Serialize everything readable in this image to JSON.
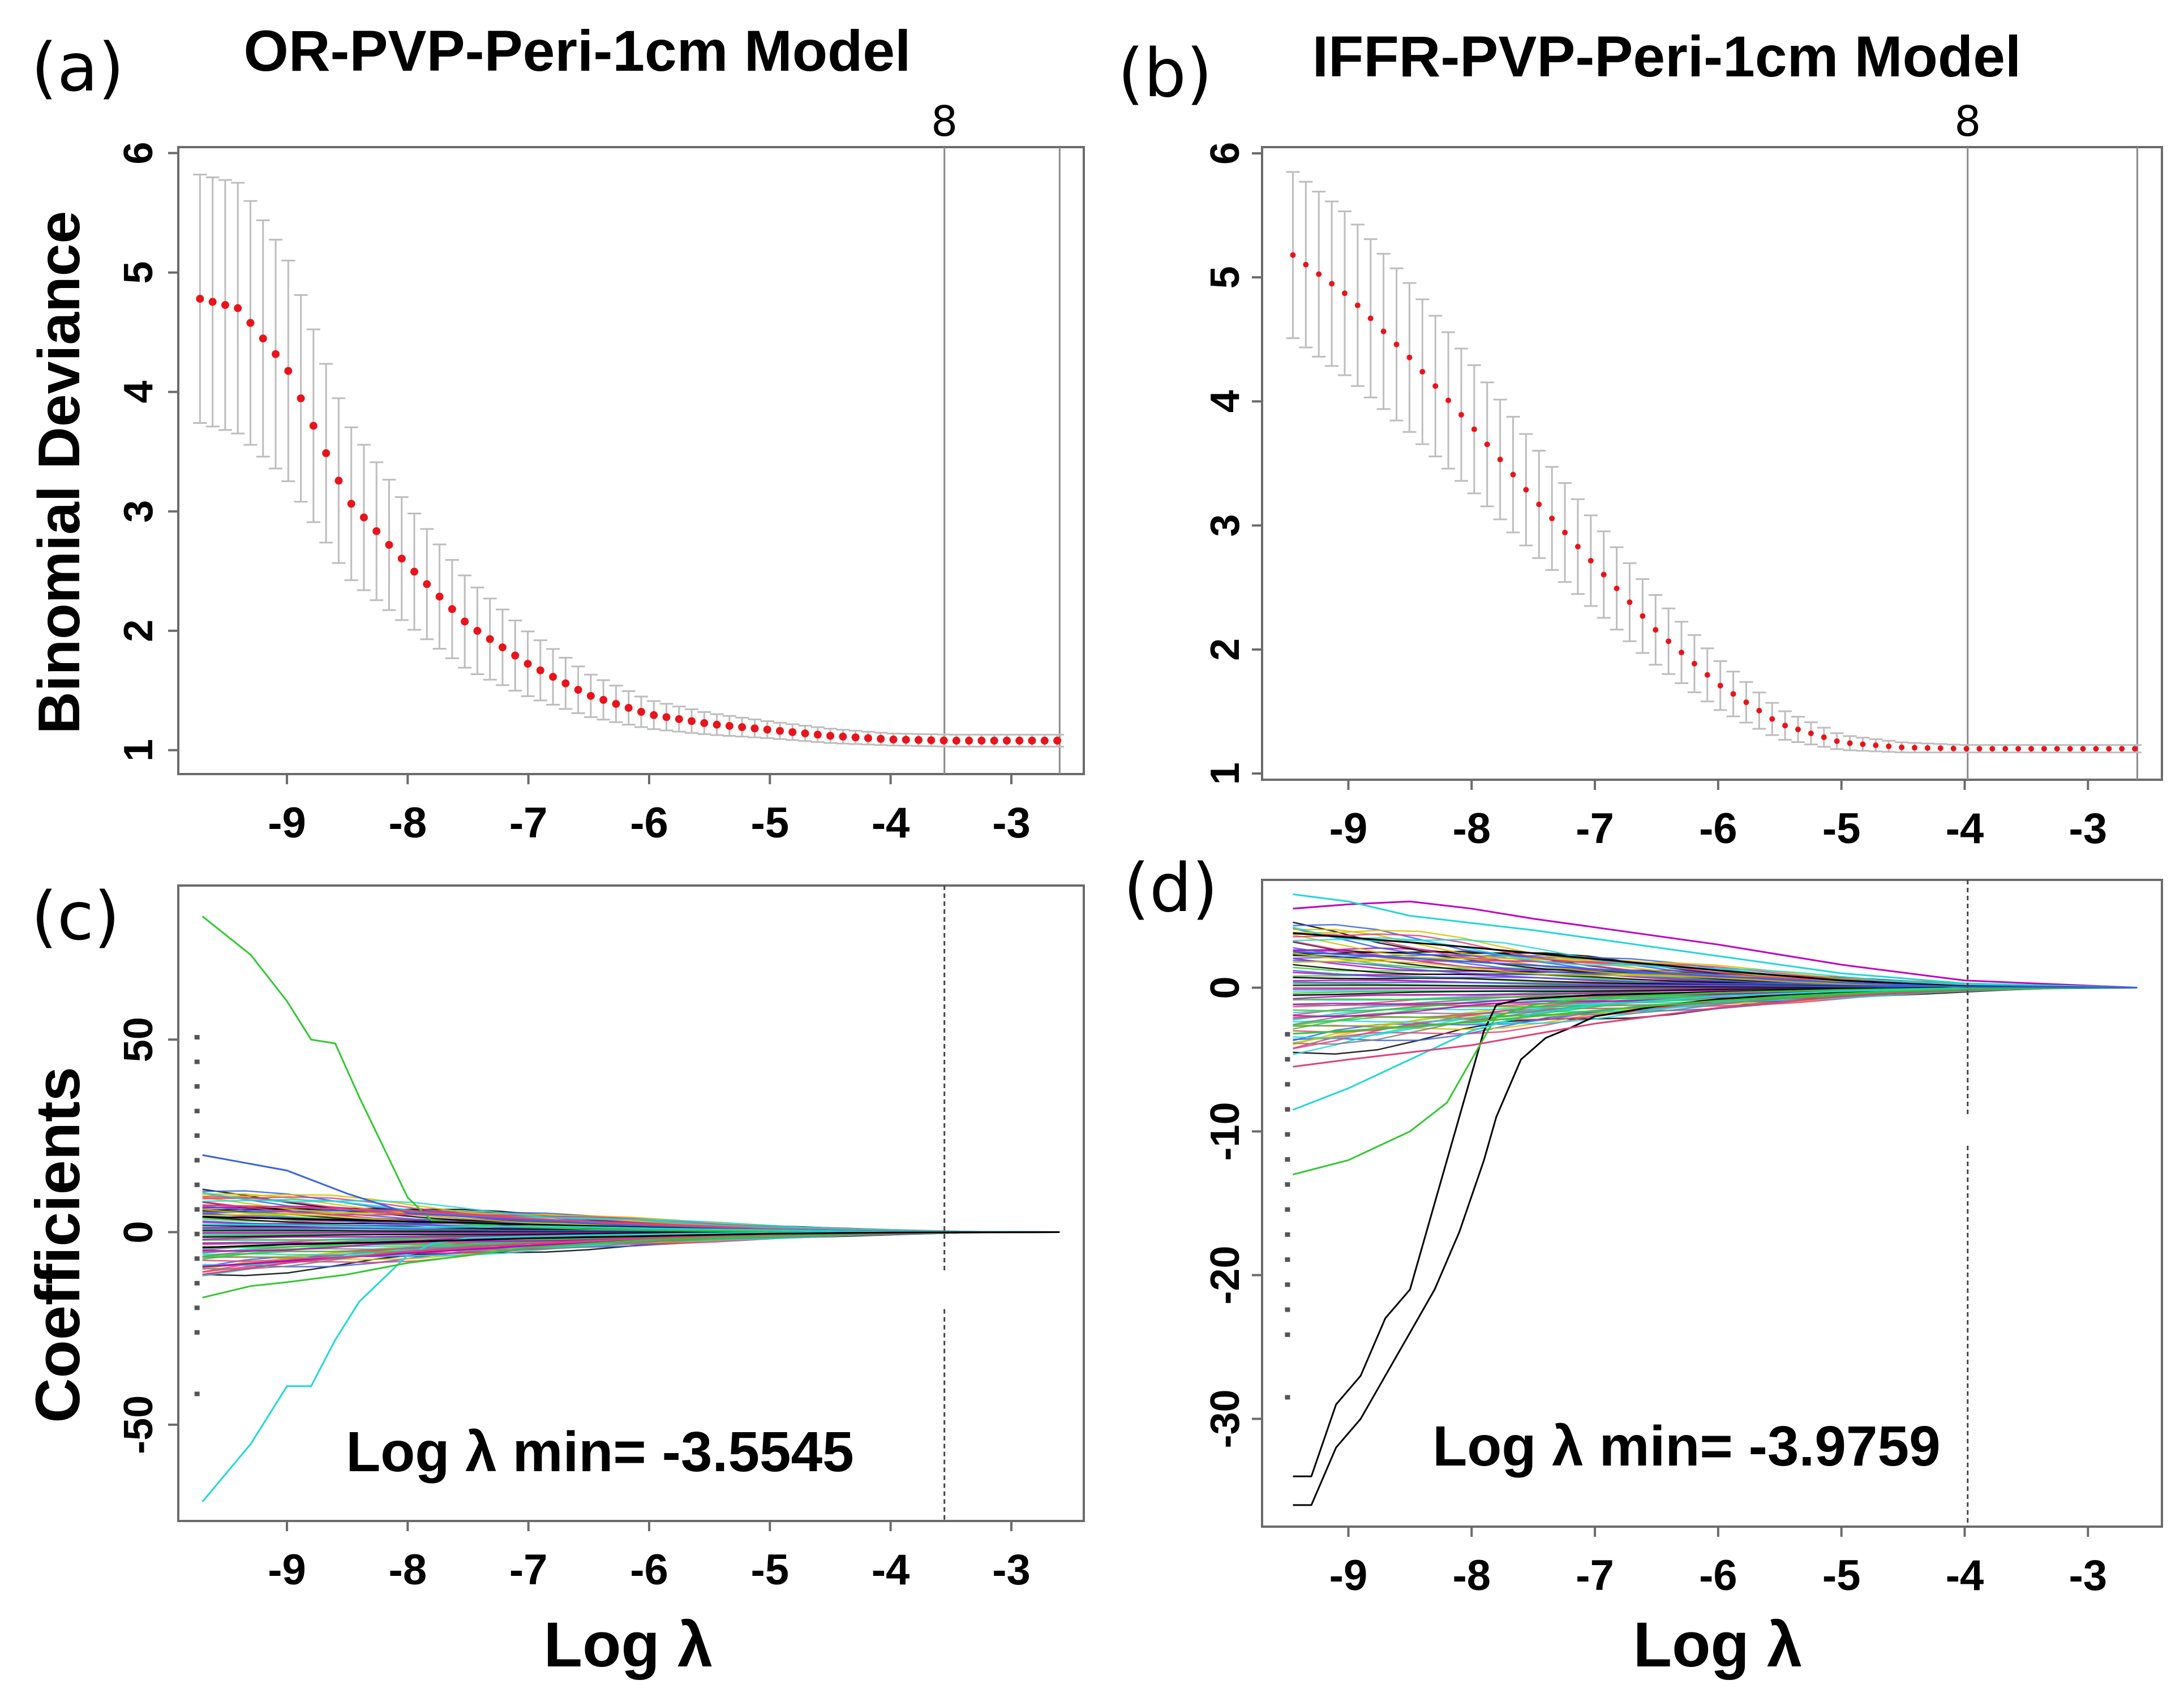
{
  "chart_data": [
    {
      "id": "a",
      "panel_label": "(a)",
      "title": "OR-PVP-Peri-1cm Model",
      "type": "line",
      "xlabel": "",
      "ylabel": "Binomial Deviance",
      "xlim": [
        -9.9,
        -2.4
      ],
      "ylim": [
        0.8,
        6.05
      ],
      "xticks": [
        -9,
        -8,
        -7,
        -6,
        -5,
        -4,
        -3
      ],
      "yticks": [
        1,
        2,
        3,
        4,
        5,
        6
      ],
      "top_labels": [
        {
          "x": -3.5545,
          "text": "8"
        }
      ],
      "vlines": [
        -3.5545,
        -2.6
      ],
      "series": [
        {
          "x_start": -9.72,
          "x_end": -2.62,
          "n": 69,
          "x_knots": [
            -9.72,
            -9.4,
            -9.0,
            -8.5,
            -8.0,
            -7.5,
            -7.0,
            -6.5,
            -6.0,
            -5.5,
            -5.0,
            -4.5,
            -4.0,
            -3.5,
            -2.62
          ],
          "y_knots": [
            4.78,
            4.7,
            4.2,
            3.1,
            2.55,
            2.05,
            1.72,
            1.46,
            1.3,
            1.22,
            1.17,
            1.12,
            1.09,
            1.08,
            1.08
          ],
          "se_knots": [
            1.04,
            1.05,
            0.93,
            0.65,
            0.5,
            0.38,
            0.27,
            0.18,
            0.12,
            0.09,
            0.07,
            0.06,
            0.05,
            0.05,
            0.05
          ]
        }
      ]
    },
    {
      "id": "b",
      "panel_label": "(b)",
      "title": "IFFR-PVP-Peri-1cm Model",
      "type": "line",
      "xlabel": "",
      "ylabel": "",
      "xlim": [
        -9.7,
        -2.4
      ],
      "ylim": [
        0.95,
        6.05
      ],
      "xticks": [
        -9,
        -8,
        -7,
        -6,
        -5,
        -4,
        -3
      ],
      "yticks": [
        1,
        2,
        3,
        4,
        5,
        6
      ],
      "top_labels": [
        {
          "x": -3.9759,
          "text": "8"
        }
      ],
      "vlines": [
        -3.9759,
        -2.6
      ],
      "series": [
        {
          "x_start": -9.45,
          "x_end": -2.62,
          "n": 66,
          "x_knots": [
            -9.45,
            -9.0,
            -8.5,
            -8.0,
            -7.5,
            -7.0,
            -6.5,
            -6.0,
            -5.5,
            -5.0,
            -4.5,
            -4.0,
            -3.5,
            -2.62
          ],
          "y_knots": [
            5.18,
            4.85,
            4.35,
            3.8,
            3.22,
            2.68,
            2.15,
            1.72,
            1.4,
            1.25,
            1.21,
            1.2,
            1.2,
            1.2
          ],
          "se_knots": [
            0.67,
            0.66,
            0.6,
            0.52,
            0.44,
            0.36,
            0.28,
            0.2,
            0.12,
            0.06,
            0.04,
            0.03,
            0.03,
            0.03
          ]
        }
      ]
    },
    {
      "id": "c",
      "panel_label": "(c)",
      "type": "line",
      "xlabel": "Log λ",
      "ylabel": "Coefficients",
      "xlim": [
        -9.9,
        -2.4
      ],
      "ylim": [
        -75,
        90
      ],
      "xticks": [
        -9,
        -8,
        -7,
        -6,
        -5,
        -4,
        -3
      ],
      "yticks": [
        -50,
        0,
        50
      ],
      "annotation": "Log λ min= -3.5545",
      "dashed_vline": -3.5545,
      "series": [
        {
          "color": "#32c832",
          "x": [
            -9.7,
            -9.3,
            -9.0,
            -8.8,
            -8.6,
            -8.4,
            -8.2,
            -8.0,
            -7.8,
            -7.2,
            -6.5,
            -5.5,
            -4.5,
            -3.6,
            -2.6
          ],
          "y": [
            82,
            72,
            60,
            50,
            49,
            35,
            22,
            9,
            3,
            1.5,
            0.8,
            0.3,
            0.1,
            0,
            0
          ]
        },
        {
          "color": "#1fd7d7",
          "x": [
            -9.7,
            -9.3,
            -9.0,
            -8.8,
            -8.6,
            -8.4,
            -8.2,
            -8.0,
            -7.8,
            -7.5,
            -6.5,
            -5.5,
            -4.5,
            -3.6,
            -2.6
          ],
          "y": [
            -70,
            -55,
            -40,
            -40,
            -28,
            -18,
            -12,
            -6,
            -3,
            -1.5,
            -0.8,
            -0.3,
            -0.1,
            0,
            0
          ]
        },
        {
          "color": "#3a62e0",
          "x": [
            -9.7,
            -9.0,
            -8.5,
            -8.0,
            -7.0,
            -6.0,
            -5.0,
            -4.0,
            -2.6
          ],
          "y": [
            20,
            16,
            10,
            5,
            3,
            1.5,
            0.5,
            0.1,
            0
          ]
        },
        {
          "color": "#e0407a",
          "x": [
            -9.7,
            -9.0,
            -8.0,
            -7.0,
            -6.0,
            -5.0,
            -4.0,
            -2.6
          ],
          "y": [
            7,
            6.5,
            5.5,
            3.5,
            2,
            0.8,
            0.2,
            0
          ]
        },
        {
          "color": "#000000",
          "x": [
            -9.7,
            -9.0,
            -8.0,
            -7.0,
            -6.0,
            -5.0,
            -4.0,
            -2.6
          ],
          "y": [
            4,
            3.5,
            2.8,
            2,
            1.2,
            0.5,
            0.1,
            0
          ]
        },
        {
          "color": "#c000c0",
          "x": [
            -9.7,
            -9.0,
            -8.0,
            -7.0,
            -6.0,
            -5.0,
            -4.0,
            -2.6
          ],
          "y": [
            -9,
            -7.5,
            -5.5,
            -3.5,
            -2,
            -0.8,
            -0.2,
            0
          ]
        },
        {
          "color": "#32c832",
          "x": [
            -9.7,
            -9.3,
            -9.0,
            -8.5,
            -8.0,
            -7.5,
            -7.0,
            -6.0,
            -5.0,
            -4.0,
            -2.6
          ],
          "y": [
            -17,
            -14,
            -13,
            -11,
            -8,
            -6,
            -4,
            -2,
            -0.8,
            -0.2,
            0
          ]
        },
        {
          "color": "#e0407a",
          "x": [
            -9.7,
            -9.0,
            -8.0,
            -7.0,
            -6.0,
            -5.0,
            -4.0,
            -2.6
          ],
          "y": [
            -11,
            -8,
            -5,
            -3,
            -1.5,
            -0.6,
            -0.1,
            0
          ]
        },
        {
          "color": "#1fd7d7",
          "x": [
            -9.7,
            -9.0,
            -8.0,
            -7.0,
            -6.0,
            -5.0,
            -4.0,
            -2.6
          ],
          "y": [
            2,
            1.8,
            1.2,
            1.6,
            1.0,
            0.5,
            0.1,
            0
          ]
        },
        {
          "color": "#000000",
          "x": [
            -9.7,
            -9.0,
            -8.0,
            -7.0,
            -6.0,
            -5.0,
            -4.0,
            -2.6
          ],
          "y": [
            -4,
            -3.2,
            -2.5,
            -1.6,
            -1.0,
            -0.4,
            -0.1,
            0
          ]
        }
      ]
    },
    {
      "id": "d",
      "panel_label": "(d)",
      "type": "line",
      "xlabel": "Log λ",
      "ylabel": "",
      "xlim": [
        -9.7,
        -2.4
      ],
      "ylim": [
        -37.5,
        7.5
      ],
      "xticks": [
        -9,
        -8,
        -7,
        -6,
        -5,
        -4,
        -3
      ],
      "yticks": [
        -30,
        -20,
        -10,
        0
      ],
      "annotation": "Log λ min= -3.9759",
      "dashed_vline": -3.9759,
      "series": [
        {
          "color": "#000000",
          "x": [
            -9.45,
            -9.3,
            -9.1,
            -8.9,
            -8.7,
            -8.5,
            -8.3,
            -8.1,
            -7.9,
            -7.8,
            -7.6,
            -7.4,
            -7.2,
            -7.0,
            -6.5,
            -6.0,
            -5.5,
            -5.0,
            -4.5,
            -4.0,
            -3.5,
            -2.6
          ],
          "y": [
            -36,
            -36,
            -32,
            -30,
            -27,
            -24,
            -21,
            -17,
            -12,
            -9,
            -5,
            -3.5,
            -2.8,
            -2,
            -1.3,
            -0.8,
            -0.5,
            -0.3,
            -0.15,
            -0.05,
            0,
            0
          ]
        },
        {
          "color": "#000000",
          "x": [
            -9.45,
            -9.3,
            -9.1,
            -8.9,
            -8.7,
            -8.5,
            -8.3,
            -8.1,
            -7.9,
            -7.8,
            -7.6,
            -7.4,
            -7.2,
            -7.0,
            -6.5,
            -6.0,
            -5.5,
            -5.0,
            -4.5,
            -4.0,
            -3.5,
            -2.6
          ],
          "y": [
            -34,
            -34,
            -29,
            -27,
            -23,
            -21,
            -15,
            -9,
            -3,
            -1.2,
            -0.8,
            -0.7,
            -0.6,
            -0.5,
            -0.4,
            -0.3,
            -0.2,
            -0.1,
            -0.05,
            0,
            0,
            0
          ]
        },
        {
          "color": "#32c832",
          "x": [
            -9.45,
            -9.0,
            -8.5,
            -8.2,
            -8.0,
            -7.8,
            -7.5,
            -7.0,
            -6.0,
            -5.0,
            -4.0,
            -2.6
          ],
          "y": [
            -13,
            -12,
            -10,
            -8,
            -5,
            -2,
            -1.2,
            -0.7,
            -0.35,
            -0.15,
            -0.03,
            0
          ]
        },
        {
          "color": "#1fd7d7",
          "x": [
            -9.45,
            -9.0,
            -8.5,
            -8.0,
            -7.5,
            -7.0,
            -6.0,
            -5.0,
            -4.0,
            -2.6
          ],
          "y": [
            -8.5,
            -7,
            -5,
            -3,
            -1.8,
            -1.2,
            -0.6,
            -0.25,
            -0.05,
            0
          ]
        },
        {
          "color": "#c000c0",
          "x": [
            -9.45,
            -9.0,
            -8.5,
            -8.0,
            -7.5,
            -7.0,
            -6.0,
            -5.0,
            -4.0,
            -2.6
          ],
          "y": [
            5.5,
            5.8,
            6.0,
            5.5,
            4.8,
            4.2,
            3.0,
            1.6,
            0.5,
            0
          ]
        },
        {
          "color": "#1fd7d7",
          "x": [
            -9.45,
            -9.0,
            -8.5,
            -8.0,
            -7.5,
            -7.0,
            -6.0,
            -5.0,
            -4.0,
            -2.6
          ],
          "y": [
            6.5,
            6.0,
            5.0,
            4.5,
            4.0,
            3.4,
            2.2,
            1.0,
            0.3,
            0
          ]
        },
        {
          "color": "#e0407a",
          "x": [
            -9.45,
            -9.0,
            -8.0,
            -7.0,
            -6.0,
            -5.0,
            -4.0,
            -2.6
          ],
          "y": [
            -5.5,
            -5.0,
            -4.0,
            -2.5,
            -1.4,
            -0.6,
            -0.1,
            0
          ]
        },
        {
          "color": "#000000",
          "x": [
            -9.45,
            -9.0,
            -8.0,
            -7.0,
            -6.0,
            -5.0,
            -4.0,
            -2.6
          ],
          "y": [
            3.8,
            3.5,
            2.8,
            2.0,
            1.2,
            0.5,
            0.1,
            0
          ]
        },
        {
          "color": "#32c832",
          "x": [
            -9.45,
            -9.0,
            -8.0,
            -7.0,
            -6.0,
            -5.0,
            -4.0,
            -2.6
          ],
          "y": [
            -3.2,
            -3.0,
            -2.4,
            -1.6,
            -0.9,
            -0.4,
            -0.1,
            0
          ]
        },
        {
          "color": "#3a62e0",
          "x": [
            -9.45,
            -9.0,
            -8.0,
            -7.0,
            -6.0,
            -5.0,
            -4.0,
            -2.6
          ],
          "y": [
            2.5,
            2.3,
            1.8,
            1.3,
            0.8,
            0.35,
            0.05,
            0
          ]
        }
      ]
    }
  ]
}
